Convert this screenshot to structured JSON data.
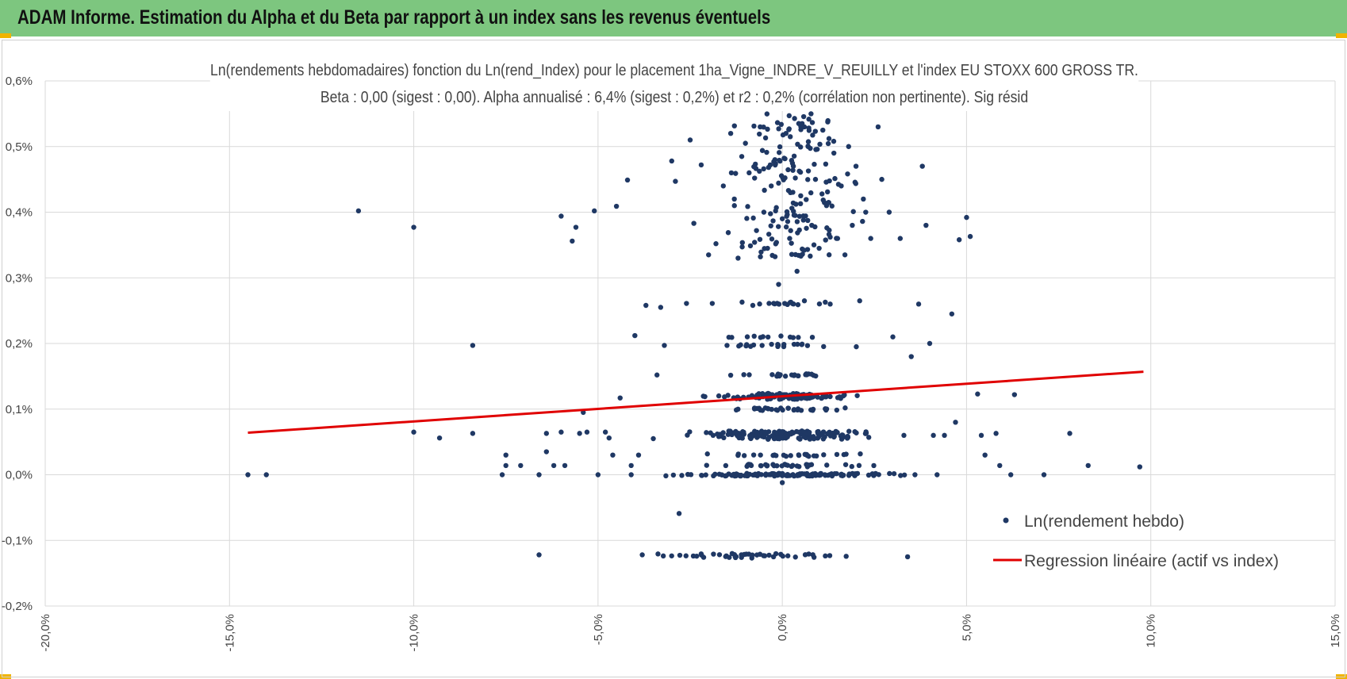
{
  "header": {
    "title": "ADAM Informe. Estimation du Alpha et du Beta par rapport à un index sans les revenus éventuels",
    "accent_color": "#7dc67f",
    "corner_color": "#f0b400"
  },
  "chart_data": {
    "type": "scatter",
    "title": "Ln(rendements hebdomadaires) fonction du Ln(rend_Index) pour le placement 1ha_Vigne_INDRE_V_REUILLY et l'index EU STOXX 600 GROSS TR.",
    "subtitle": "Beta : 0,00 (sigest : 0,00). Alpha annualisé : 6,4% (sigest : 0,2%) et r2 : 0,2% (corrélation non pertinente). Sig résid",
    "xlabel": "",
    "ylabel": "",
    "xlim": [
      -20,
      15
    ],
    "ylim": [
      -0.2,
      0.6
    ],
    "x_ticks": [
      "-20,0%",
      "-15,0%",
      "-10,0%",
      "-5,0%",
      "0,0%",
      "5,0%",
      "10,0%",
      "15,0%"
    ],
    "y_ticks": [
      "0,6%",
      "0,5%",
      "0,4%",
      "0,3%",
      "0,2%",
      "0,1%",
      "0,0%",
      "-0,1%",
      "-0,2%"
    ],
    "grid": true,
    "legend_position": "bottom-right",
    "series": [
      {
        "name": "Ln(rendement hebdo)",
        "kind": "scatter",
        "color": "#1f3864",
        "points": [
          [
            -14.5,
            0.0
          ],
          [
            -14.0,
            0.0
          ],
          [
            -11.5,
            0.402
          ],
          [
            -10.0,
            0.377
          ],
          [
            -10.0,
            0.065
          ],
          [
            -9.3,
            0.056
          ],
          [
            -8.4,
            0.197
          ],
          [
            -8.4,
            0.063
          ],
          [
            -7.6,
            0.0
          ],
          [
            -7.5,
            0.03
          ],
          [
            -7.5,
            0.014
          ],
          [
            -7.1,
            0.014
          ],
          [
            -6.6,
            0.0
          ],
          [
            -6.6,
            -0.122
          ],
          [
            -6.4,
            0.063
          ],
          [
            -6.4,
            0.035
          ],
          [
            -6.2,
            0.014
          ],
          [
            -6.0,
            0.394
          ],
          [
            -6.0,
            0.065
          ],
          [
            -5.9,
            0.014
          ],
          [
            -5.7,
            0.356
          ],
          [
            -5.6,
            0.377
          ],
          [
            -5.5,
            0.063
          ],
          [
            -5.4,
            0.095
          ],
          [
            -5.3,
            0.065
          ],
          [
            -5.1,
            0.402
          ],
          [
            -5.0,
            0.0
          ],
          [
            -4.8,
            0.065
          ],
          [
            -4.7,
            0.056
          ],
          [
            -4.6,
            0.03
          ],
          [
            -4.5,
            0.409
          ],
          [
            -4.4,
            0.117
          ],
          [
            -4.2,
            0.449
          ],
          [
            -4.1,
            0.014
          ],
          [
            -4.1,
            0.0
          ],
          [
            -4.0,
            0.212
          ],
          [
            -3.9,
            0.03
          ],
          [
            -3.8,
            -0.122
          ],
          [
            -3.7,
            0.258
          ],
          [
            -3.5,
            0.055
          ],
          [
            -3.4,
            0.152
          ],
          [
            -3.3,
            0.255
          ],
          [
            -3.2,
            0.197
          ],
          [
            -3.0,
            0.478
          ],
          [
            -2.9,
            0.447
          ],
          [
            -2.8,
            -0.059
          ],
          [
            -2.6,
            0.261
          ],
          [
            -2.5,
            0.51
          ],
          [
            -2.4,
            0.383
          ],
          [
            -2.2,
            0.472
          ],
          [
            -2.1,
            0.119
          ],
          [
            -2.0,
            0.335
          ],
          [
            -1.9,
            0.261
          ],
          [
            -1.8,
            0.352
          ],
          [
            -1.6,
            0.44
          ],
          [
            -1.5,
            0.197
          ],
          [
            -1.4,
            0.52
          ],
          [
            -1.3,
            0.41
          ],
          [
            -1.2,
            0.33
          ],
          [
            -1.0,
            0.505
          ],
          [
            -0.9,
            0.46
          ],
          [
            -0.8,
            0.258
          ],
          [
            -0.7,
            0.372
          ],
          [
            -0.6,
            0.53
          ],
          [
            -0.5,
            0.4
          ],
          [
            -0.4,
            0.345
          ],
          [
            -0.3,
            0.44
          ],
          [
            -0.2,
            0.48
          ],
          [
            -0.1,
            0.29
          ],
          [
            0.0,
            0.39
          ],
          [
            0.1,
            0.52
          ],
          [
            0.2,
            0.36
          ],
          [
            0.3,
            0.47
          ],
          [
            0.4,
            0.31
          ],
          [
            0.5,
            0.425
          ],
          [
            0.6,
            0.265
          ],
          [
            0.7,
            0.5
          ],
          [
            0.8,
            0.38
          ],
          [
            0.9,
            0.45
          ],
          [
            1.0,
            0.345
          ],
          [
            1.1,
            0.525
          ],
          [
            1.2,
            0.41
          ],
          [
            1.3,
            0.26
          ],
          [
            1.4,
            0.49
          ],
          [
            1.5,
            0.36
          ],
          [
            1.6,
            0.44
          ],
          [
            1.7,
            0.335
          ],
          [
            1.8,
            0.5
          ],
          [
            1.9,
            0.38
          ],
          [
            2.0,
            0.47
          ],
          [
            2.1,
            0.265
          ],
          [
            2.2,
            0.42
          ],
          [
            2.4,
            0.36
          ],
          [
            2.6,
            0.53
          ],
          [
            2.7,
            0.45
          ],
          [
            2.9,
            0.4
          ],
          [
            3.0,
            0.21
          ],
          [
            3.2,
            0.36
          ],
          [
            3.3,
            0.06
          ],
          [
            3.4,
            -0.125
          ],
          [
            3.5,
            0.18
          ],
          [
            3.6,
            0.0
          ],
          [
            3.7,
            0.26
          ],
          [
            3.8,
            0.47
          ],
          [
            3.9,
            0.38
          ],
          [
            4.0,
            0.2
          ],
          [
            4.1,
            0.06
          ],
          [
            4.2,
            0.0
          ],
          [
            4.4,
            0.06
          ],
          [
            4.6,
            0.245
          ],
          [
            4.7,
            0.08
          ],
          [
            4.8,
            0.358
          ],
          [
            5.0,
            0.392
          ],
          [
            5.1,
            0.363
          ],
          [
            5.3,
            0.123
          ],
          [
            5.4,
            0.06
          ],
          [
            5.5,
            0.03
          ],
          [
            5.8,
            0.063
          ],
          [
            5.9,
            0.014
          ],
          [
            6.2,
            0.0
          ],
          [
            6.3,
            0.122
          ],
          [
            7.1,
            0.0
          ],
          [
            7.8,
            0.063
          ],
          [
            8.3,
            0.014
          ],
          [
            9.7,
            0.012
          ],
          [
            0.0,
            -0.012
          ]
        ],
        "dense_clusters": [
          {
            "x_range": [
              -3.8,
              3.8
            ],
            "y_values": [
              0.0
            ],
            "count": 140
          },
          {
            "x_range": [
              -3.0,
              3.0
            ],
            "y_values": [
              0.06,
              0.063,
              0.065,
              0.056
            ],
            "count": 160
          },
          {
            "x_range": [
              -2.5,
              2.5
            ],
            "y_values": [
              0.1,
              0.117,
              0.12,
              0.122
            ],
            "count": 140
          },
          {
            "x_range": [
              -3.0,
              3.0
            ],
            "y_values": [
              0.014,
              0.03
            ],
            "count": 60
          },
          {
            "x_range": [
              -2.2,
              2.2
            ],
            "y_values": [
              0.152,
              0.197,
              0.21,
              0.261
            ],
            "count": 70
          },
          {
            "x_range": [
              -3.8,
              2.2
            ],
            "y_values": [
              -0.122,
              -0.125
            ],
            "count": 45
          },
          {
            "x_range": [
              -2.0,
              2.5
            ],
            "y_values": [
              0.33,
              0.55
            ],
            "count": 170
          }
        ]
      },
      {
        "name": "Regression linéaire (actif vs index)",
        "kind": "line",
        "color": "#e00000",
        "points": [
          [
            -14.5,
            0.064
          ],
          [
            9.8,
            0.157
          ]
        ]
      }
    ]
  }
}
